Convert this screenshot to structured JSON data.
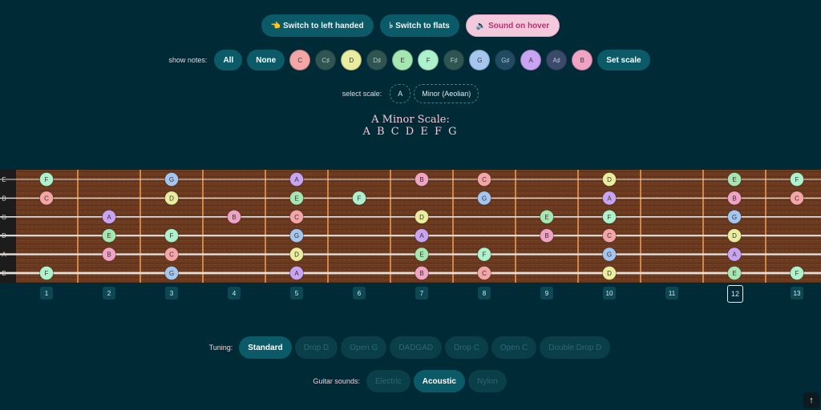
{
  "top_buttons": {
    "left_handed": "👈 Switch to left handed",
    "flats": "♭ Switch to flats",
    "sound_hover": "🔈 Sound on hover"
  },
  "show_notes": {
    "label": "show notes:",
    "all_label": "All",
    "none_label": "None",
    "notes": [
      {
        "name": "C",
        "color": "#f4a6a6",
        "text": "#333"
      },
      {
        "name": "C♯",
        "color": "#2f5553",
        "text": "#b7c7c4"
      },
      {
        "name": "D",
        "color": "#eaed9e",
        "text": "#333"
      },
      {
        "name": "D♯",
        "color": "#2f5553",
        "text": "#b7c7c4"
      },
      {
        "name": "E",
        "color": "#a6e7b1",
        "text": "#333"
      },
      {
        "name": "F",
        "color": "#aef2cc",
        "text": "#333"
      },
      {
        "name": "F♯",
        "color": "#2f5553",
        "text": "#b7c7c4"
      },
      {
        "name": "G",
        "color": "#a5c6ee",
        "text": "#333"
      },
      {
        "name": "G♯",
        "color": "#214b63",
        "text": "#b7c7d4"
      },
      {
        "name": "A",
        "color": "#c9a4f2",
        "text": "#333"
      },
      {
        "name": "A♯",
        "color": "#3b4a6b",
        "text": "#c4c3db"
      },
      {
        "name": "B",
        "color": "#f1a3c4",
        "text": "#333"
      }
    ],
    "set_scale_label": "Set scale"
  },
  "select_scale": {
    "label": "select scale:",
    "root": "A",
    "mode": "Minor (Aeolian)"
  },
  "scale_display": {
    "title": "A Minor Scale:",
    "notes": "A B C D E F G"
  },
  "fretboard": {
    "string_labels": [
      "E",
      "B",
      "G",
      "D",
      "A",
      "E"
    ],
    "fret_numbers": [
      "1",
      "2",
      "3",
      "4",
      "5",
      "6",
      "7",
      "8",
      "9",
      "10",
      "11",
      "12",
      "13"
    ],
    "active_fret": "12",
    "note_colors": {
      "A": "#c9a4f2",
      "B": "#f1a3c4",
      "C": "#f4a6a6",
      "D": "#eaed9e",
      "E": "#a6e7b1",
      "F": "#aef2cc",
      "G": "#a5c6ee"
    },
    "notes": [
      {
        "s": 0,
        "f": 1,
        "n": "F"
      },
      {
        "s": 0,
        "f": 3,
        "n": "G"
      },
      {
        "s": 0,
        "f": 5,
        "n": "A"
      },
      {
        "s": 0,
        "f": 7,
        "n": "B"
      },
      {
        "s": 0,
        "f": 8,
        "n": "C"
      },
      {
        "s": 0,
        "f": 10,
        "n": "D"
      },
      {
        "s": 0,
        "f": 12,
        "n": "E"
      },
      {
        "s": 0,
        "f": 13,
        "n": "F"
      },
      {
        "s": 1,
        "f": 1,
        "n": "C"
      },
      {
        "s": 1,
        "f": 3,
        "n": "D"
      },
      {
        "s": 1,
        "f": 5,
        "n": "E"
      },
      {
        "s": 1,
        "f": 6,
        "n": "F"
      },
      {
        "s": 1,
        "f": 8,
        "n": "G"
      },
      {
        "s": 1,
        "f": 10,
        "n": "A"
      },
      {
        "s": 1,
        "f": 12,
        "n": "B"
      },
      {
        "s": 1,
        "f": 13,
        "n": "C"
      },
      {
        "s": 2,
        "f": 2,
        "n": "A"
      },
      {
        "s": 2,
        "f": 4,
        "n": "B"
      },
      {
        "s": 2,
        "f": 5,
        "n": "C"
      },
      {
        "s": 2,
        "f": 7,
        "n": "D"
      },
      {
        "s": 2,
        "f": 9,
        "n": "E"
      },
      {
        "s": 2,
        "f": 10,
        "n": "F"
      },
      {
        "s": 2,
        "f": 12,
        "n": "G"
      },
      {
        "s": 3,
        "f": 2,
        "n": "E"
      },
      {
        "s": 3,
        "f": 3,
        "n": "F"
      },
      {
        "s": 3,
        "f": 5,
        "n": "G"
      },
      {
        "s": 3,
        "f": 7,
        "n": "A"
      },
      {
        "s": 3,
        "f": 9,
        "n": "B"
      },
      {
        "s": 3,
        "f": 10,
        "n": "C"
      },
      {
        "s": 3,
        "f": 12,
        "n": "D"
      },
      {
        "s": 4,
        "f": 2,
        "n": "B"
      },
      {
        "s": 4,
        "f": 3,
        "n": "C"
      },
      {
        "s": 4,
        "f": 5,
        "n": "D"
      },
      {
        "s": 4,
        "f": 7,
        "n": "E"
      },
      {
        "s": 4,
        "f": 8,
        "n": "F"
      },
      {
        "s": 4,
        "f": 10,
        "n": "G"
      },
      {
        "s": 4,
        "f": 12,
        "n": "A"
      },
      {
        "s": 5,
        "f": 1,
        "n": "F"
      },
      {
        "s": 5,
        "f": 3,
        "n": "G"
      },
      {
        "s": 5,
        "f": 5,
        "n": "A"
      },
      {
        "s": 5,
        "f": 7,
        "n": "B"
      },
      {
        "s": 5,
        "f": 8,
        "n": "C"
      },
      {
        "s": 5,
        "f": 10,
        "n": "D"
      },
      {
        "s": 5,
        "f": 12,
        "n": "E"
      },
      {
        "s": 5,
        "f": 13,
        "n": "F"
      }
    ]
  },
  "tuning": {
    "label": "Tuning:",
    "options": [
      "Standard",
      "Drop D",
      "Open G",
      "DADGAD",
      "Drop C",
      "Open C",
      "Double Drop D"
    ],
    "selected": "Standard"
  },
  "guitar_sounds": {
    "label": "Guitar sounds:",
    "options": [
      "Electric",
      "Acoustic",
      "Nylon"
    ],
    "selected": "Acoustic"
  },
  "scroll_top_icon": "arrow-up-icon"
}
